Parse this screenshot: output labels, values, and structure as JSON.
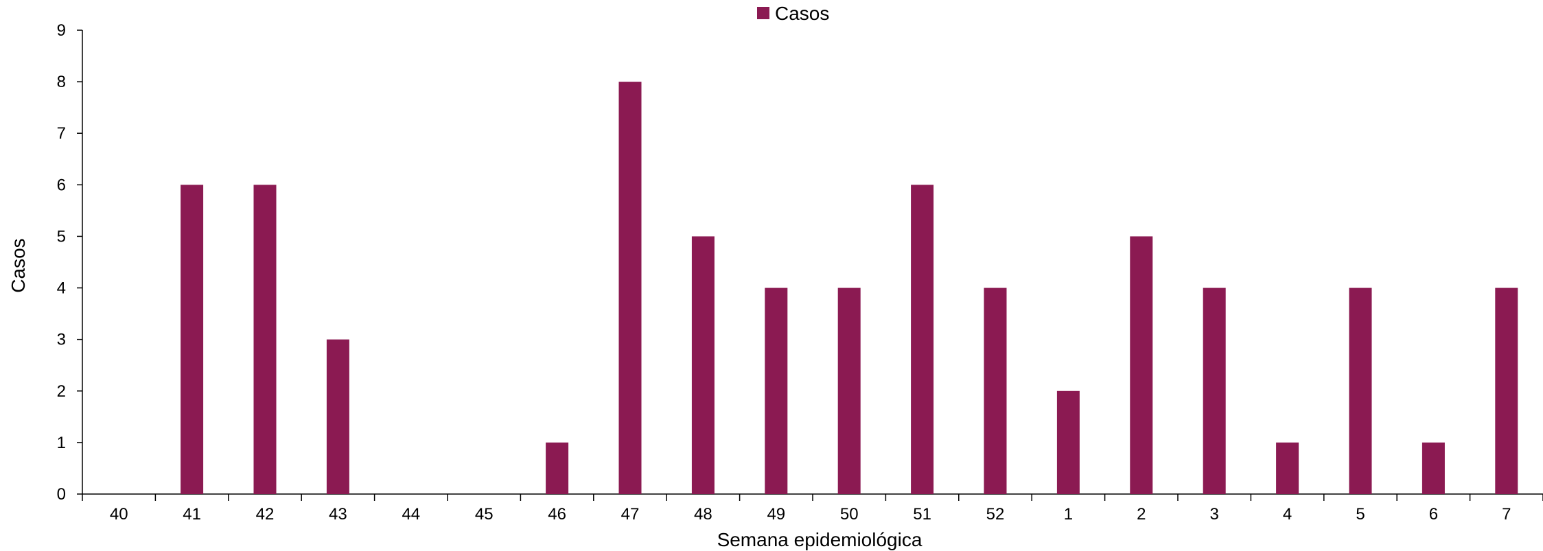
{
  "chart_data": {
    "type": "bar",
    "title": "",
    "xlabel": "Semana epidemiológica",
    "ylabel": "Casos",
    "ylim": [
      0,
      9
    ],
    "yticks": [
      "0",
      "1",
      "2",
      "3",
      "4",
      "5",
      "6",
      "7",
      "8",
      "9"
    ],
    "categories": [
      "40",
      "41",
      "42",
      "43",
      "44",
      "45",
      "46",
      "47",
      "48",
      "49",
      "50",
      "51",
      "52",
      "1",
      "2",
      "3",
      "4",
      "5",
      "6",
      "7"
    ],
    "series": [
      {
        "name": "Casos",
        "color": "#8B1A52",
        "values": [
          0,
          6,
          6,
          3,
          0,
          0,
          1,
          8,
          5,
          4,
          4,
          6,
          4,
          2,
          5,
          4,
          1,
          4,
          1,
          4
        ]
      }
    ],
    "legend_position": "top-center",
    "grid": false
  }
}
